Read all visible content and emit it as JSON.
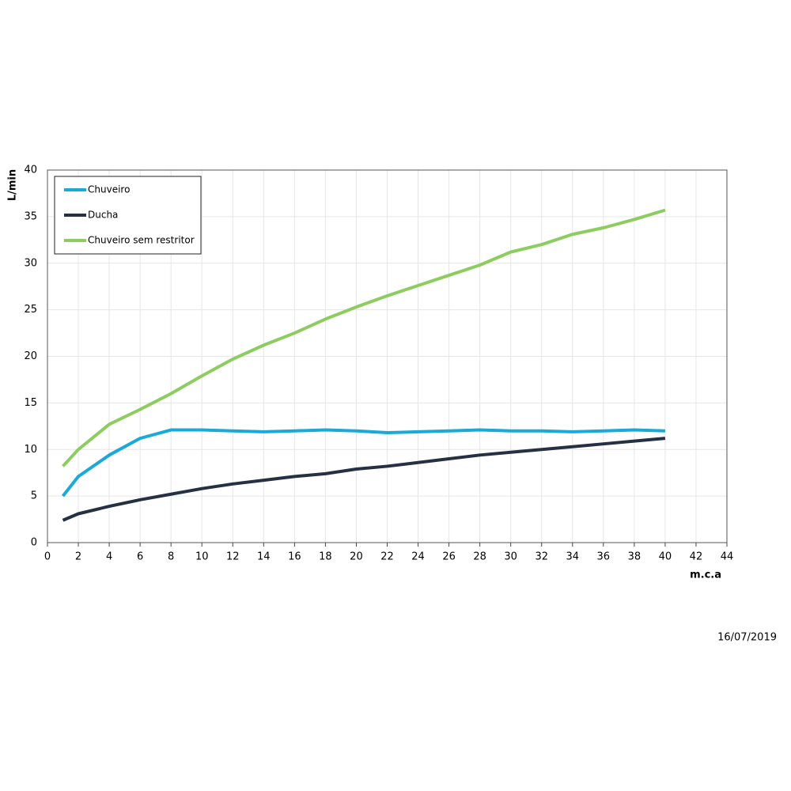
{
  "chart_data": {
    "type": "line",
    "y_label": "L/min",
    "x_label": "m.c.a",
    "date": "16/07/2019",
    "x": [
      1,
      2,
      4,
      6,
      8,
      10,
      12,
      14,
      16,
      18,
      20,
      22,
      24,
      26,
      28,
      30,
      32,
      34,
      36,
      38,
      40
    ],
    "series": [
      {
        "name": "Chuveiro",
        "color": "#1ba9d8",
        "values": [
          5.0,
          7.1,
          9.4,
          11.2,
          12.1,
          12.1,
          12.0,
          11.9,
          12.0,
          12.1,
          12.0,
          11.8,
          11.9,
          12.0,
          12.1,
          12.0,
          12.0,
          11.9,
          12.0,
          12.1,
          12.0
        ]
      },
      {
        "name": "Ducha",
        "color": "#253142",
        "values": [
          2.4,
          3.1,
          3.9,
          4.6,
          5.2,
          5.8,
          6.3,
          6.7,
          7.1,
          7.4,
          7.9,
          8.2,
          8.6,
          9.0,
          9.4,
          9.7,
          10.0,
          10.3,
          10.6,
          10.9,
          11.2
        ]
      },
      {
        "name": "Chuveiro sem restritor",
        "color": "#8dcc5e",
        "values": [
          8.2,
          10.0,
          12.7,
          14.3,
          16.0,
          17.9,
          19.7,
          21.2,
          22.5,
          24.0,
          25.3,
          26.5,
          27.6,
          28.7,
          29.8,
          31.2,
          32.0,
          33.1,
          33.8,
          34.7,
          35.7
        ]
      }
    ],
    "xlim": [
      0,
      44
    ],
    "xticks": [
      0,
      2,
      4,
      6,
      8,
      10,
      12,
      14,
      16,
      18,
      20,
      22,
      24,
      26,
      28,
      30,
      32,
      34,
      36,
      38,
      40,
      42,
      44
    ],
    "ylim": [
      0,
      40
    ],
    "yticks": [
      0,
      5,
      10,
      15,
      20,
      25,
      30,
      35,
      40
    ],
    "grid": true,
    "legend": "top-left"
  }
}
